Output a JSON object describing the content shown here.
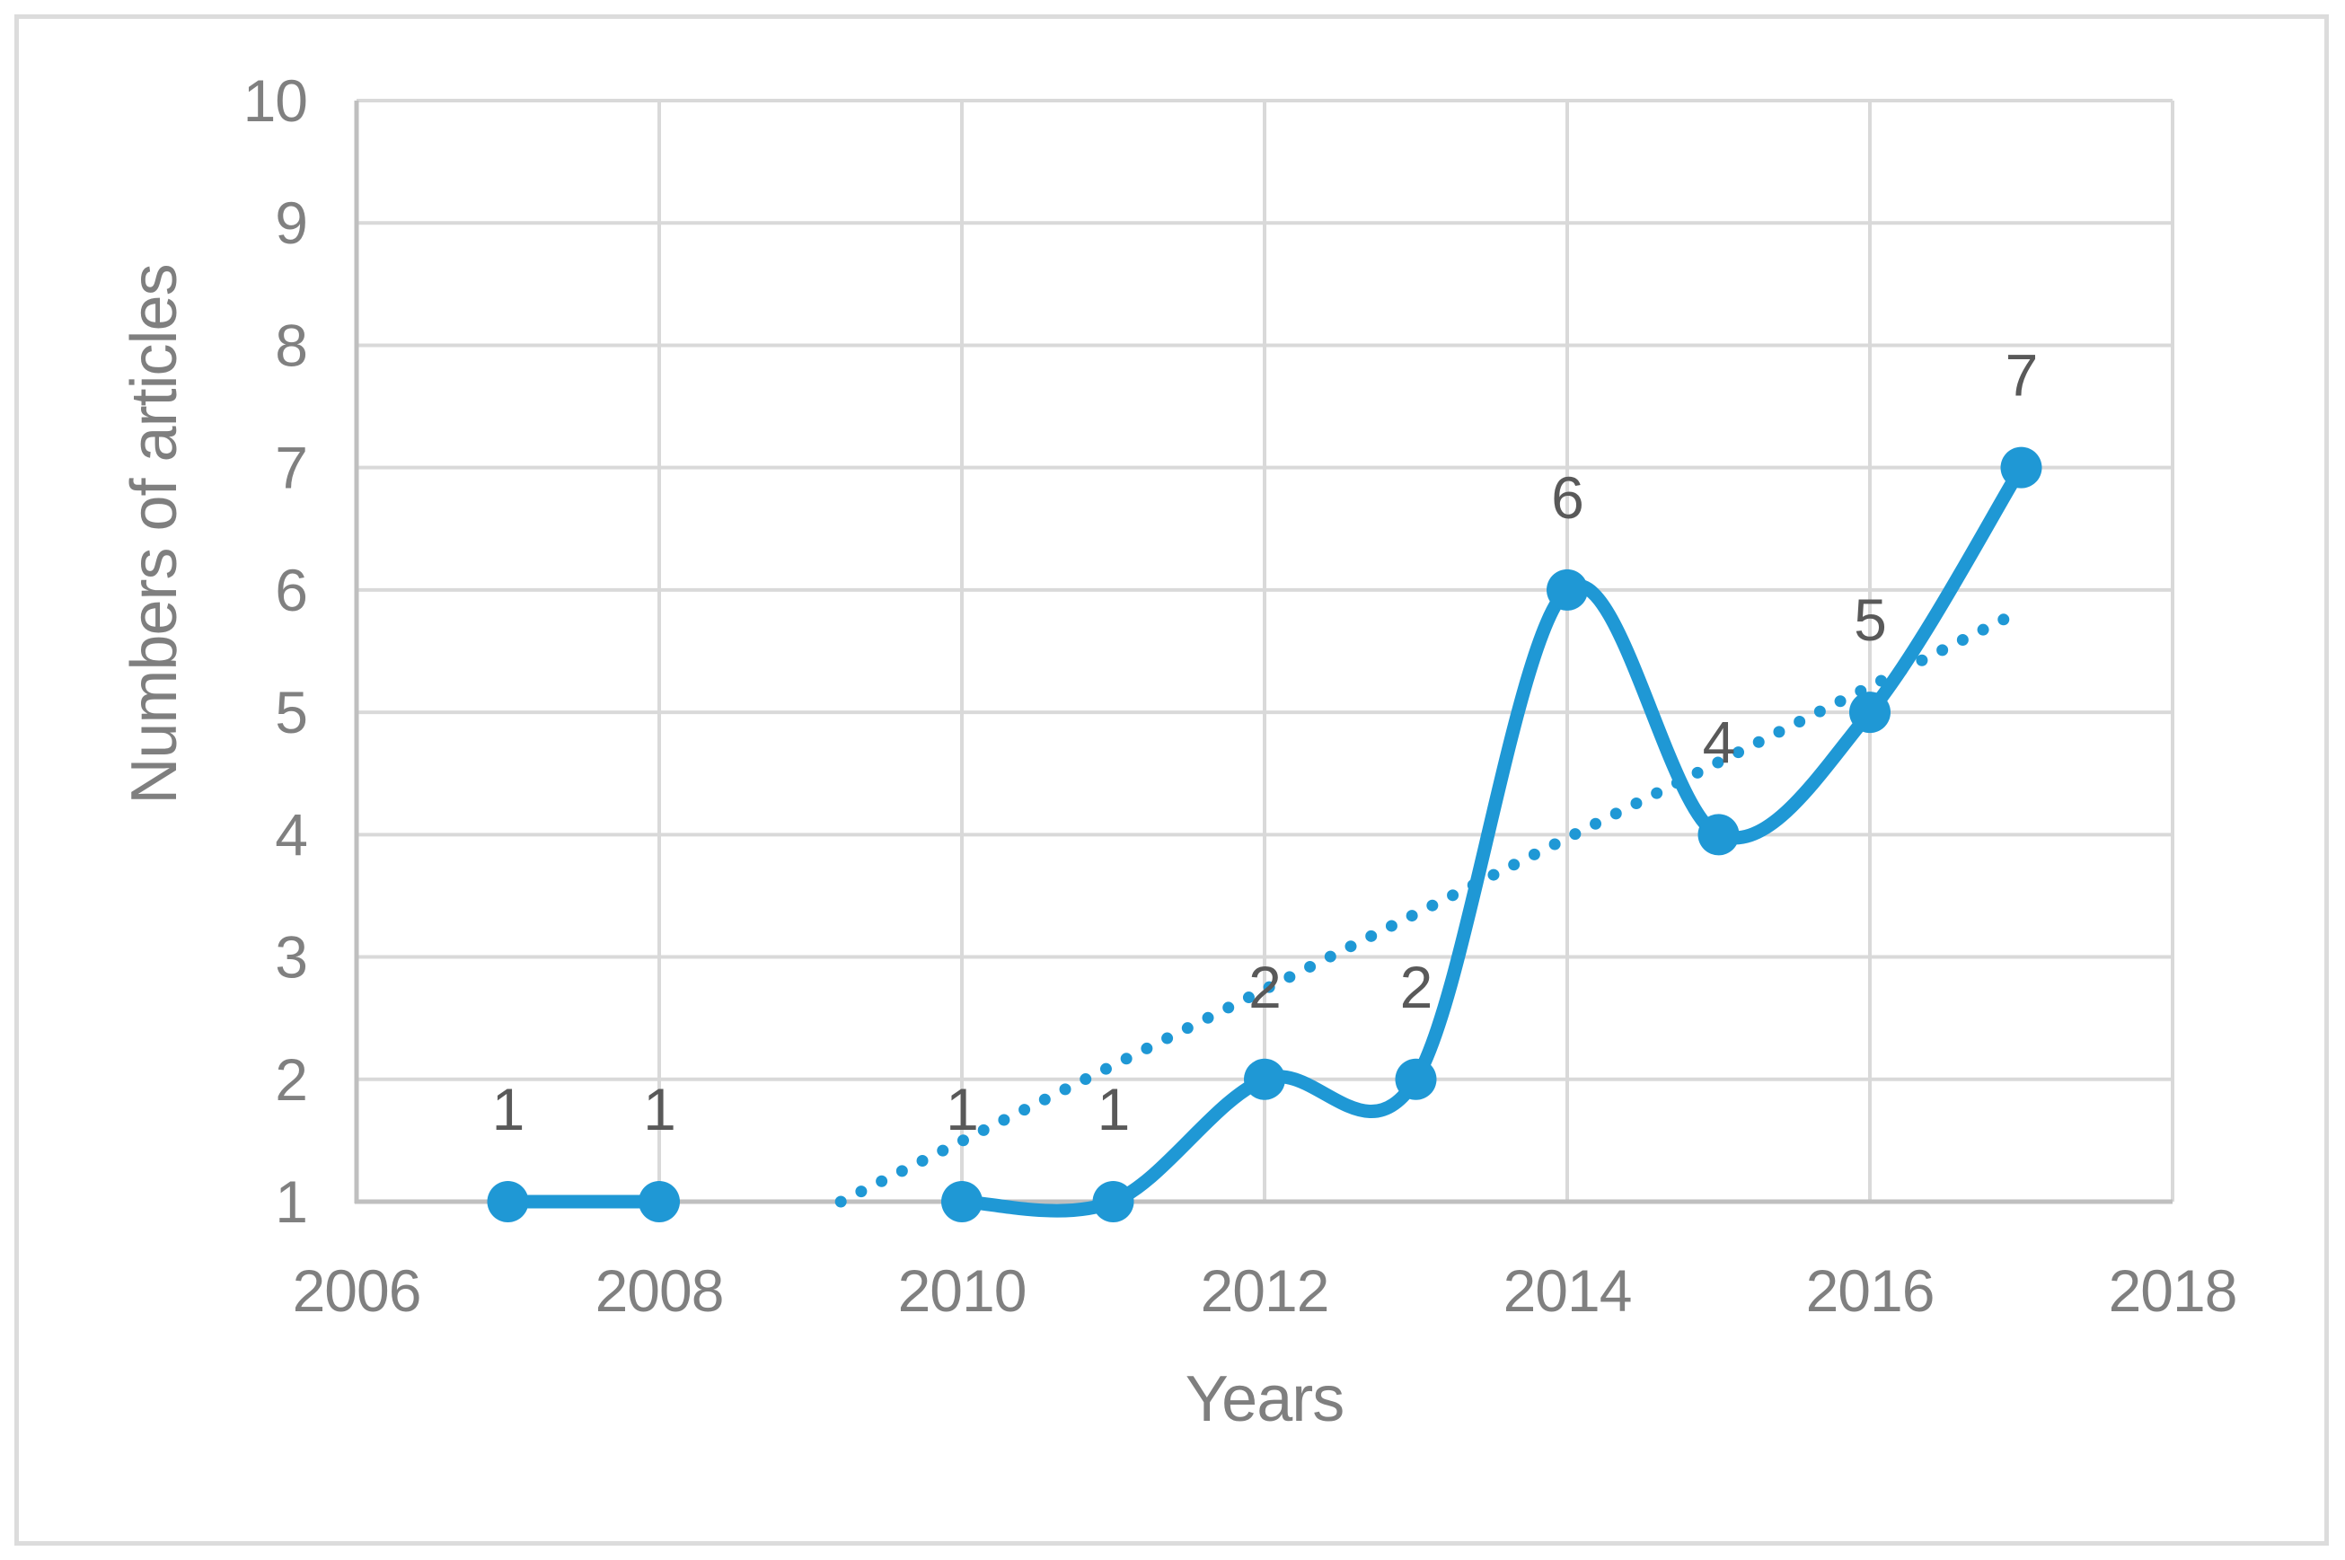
{
  "figure": {
    "xlabel": "Years",
    "ylabel": "Numbers of articles"
  },
  "chart_data": {
    "type": "line",
    "title": "",
    "xlabel": "Years",
    "ylabel": "Numbers of articles",
    "xlim": [
      2006,
      2018
    ],
    "ylim": [
      1,
      10
    ],
    "x_ticks": [
      2006,
      2008,
      2010,
      2012,
      2014,
      2016,
      2018
    ],
    "y_ticks": [
      1,
      2,
      3,
      4,
      5,
      6,
      7,
      8,
      9,
      10
    ],
    "grid": true,
    "legend": false,
    "series": [
      {
        "name": "Numbers of articles",
        "type": "line",
        "smooth": true,
        "marker": "circle",
        "color": "#1f98d5",
        "x": [
          2007,
          2008,
          2010,
          2011,
          2012,
          2013,
          2014,
          2015,
          2016,
          2017
        ],
        "values": [
          1,
          1,
          1,
          1,
          2,
          2,
          6,
          4,
          5,
          7
        ],
        "data_labels": [
          "1",
          "1",
          "1",
          "1",
          "2",
          "2",
          "6",
          "4",
          "5",
          "7"
        ]
      }
    ],
    "trendline": {
      "type": "linear",
      "style": "dotted",
      "color": "#1f98d5",
      "start": {
        "x": 2009.2,
        "y": 1.0
      },
      "end": {
        "x": 2016.95,
        "y": 5.8
      }
    },
    "colors": {
      "background": "#ffffff",
      "figure_border": "#dcdcdc",
      "gridline": "#d9d9d9",
      "axis_line": "#bfbfbf",
      "tick_label": "#808080",
      "axis_title": "#7f7f7f",
      "data_label": "#595959"
    }
  }
}
